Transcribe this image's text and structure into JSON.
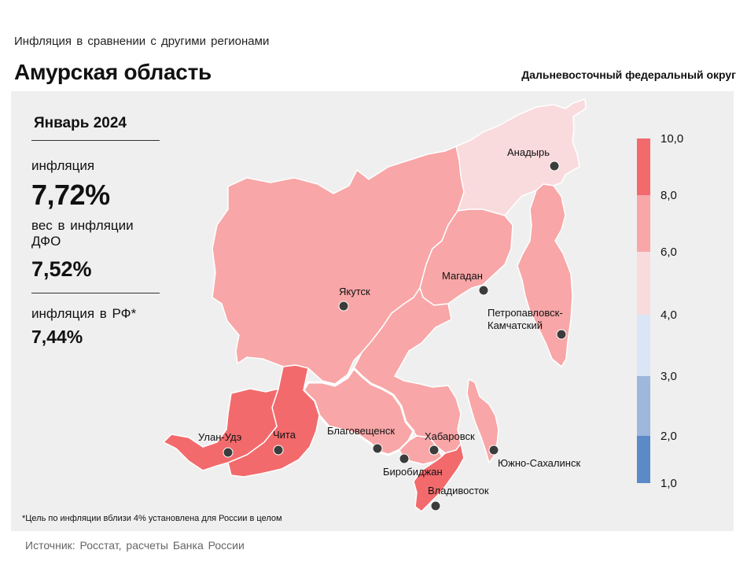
{
  "header": {
    "subtitle": "Инфляция  в сравнении  с другими  регионами",
    "region": "Амурская область",
    "district": "Дальневосточный федеральный округ"
  },
  "info": {
    "period": "Январь 2024",
    "inflation_label": "инфляция",
    "inflation_value": "7,72%",
    "weight_label": "вес в инфляции  ДФО",
    "weight_value": "7,52%",
    "rf_label": "инфляция  в РФ*",
    "rf_value": "7,44%"
  },
  "footnote": "*Цель по инфляции вблизи 4% установлена для России в целом",
  "source": "Источник: Росстат, расчеты  Банка  России",
  "legend": {
    "ticks": [
      "10,0",
      "8,0",
      "6,0",
      "4,0",
      "3,0",
      "2,0",
      "1,0"
    ],
    "colors": [
      "#f26a6c",
      "#f8a6a7",
      "#f9dadd",
      "#dae5f5",
      "#9db7dd",
      "#5b8ac8"
    ]
  },
  "map": {
    "cities": [
      {
        "name": "Анадырь",
        "bin": "4-6"
      },
      {
        "name": "Якутск",
        "bin": "6-8"
      },
      {
        "name": "Магадан",
        "bin": "6-8"
      },
      {
        "name": "Петропавловск-",
        "name2": "Камчатский",
        "bin": "6-8"
      },
      {
        "name": "Улан-Удэ",
        "bin": "8-10"
      },
      {
        "name": "Чита",
        "bin": "8-10"
      },
      {
        "name": "Благовещенск",
        "bin": "6-8",
        "highlighted": true
      },
      {
        "name": "Хабаровск",
        "bin": "6-8"
      },
      {
        "name": "Биробиджан",
        "bin": "6-8"
      },
      {
        "name": "Южно-Сахалинск",
        "bin": "6-8"
      },
      {
        "name": "Владивосток",
        "bin": "8-10"
      }
    ]
  }
}
